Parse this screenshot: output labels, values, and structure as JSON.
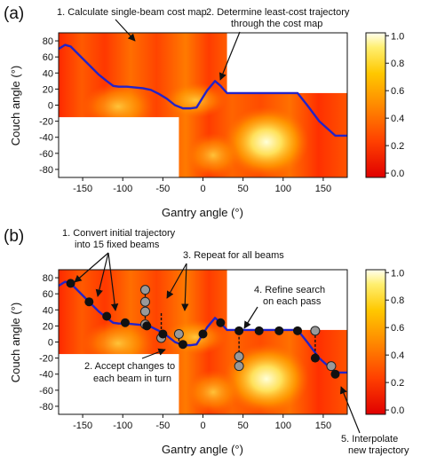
{
  "panel_a": {
    "label": "(a)",
    "annotation_1": "1. Calculate single-beam cost map",
    "annotation_2_line1": "2. Determine least-cost trajectory",
    "annotation_2_line2": "through the cost map",
    "xlabel": "Gantry angle (°)",
    "ylabel": "Couch angle (°)"
  },
  "panel_b": {
    "label": "(b)",
    "annotation_1_line1": "1. Convert initial trajectory",
    "annotation_1_line2": "into 15 fixed beams",
    "annotation_2_line1": "2. Accept changes to",
    "annotation_2_line2": "each beam in turn",
    "annotation_3": "3. Repeat for all beams",
    "annotation_4_line1": "4. Refine search",
    "annotation_4_line2": "on each pass",
    "annotation_5_line1": "5. Interpolate",
    "annotation_5_line2": "new trajectory",
    "xlabel": "Gantry angle (°)",
    "ylabel": "Couch angle (°)"
  },
  "colors": {
    "trajectory": "#2323c8",
    "accepted_beam": "#111111",
    "candidate_beam": "#999999",
    "colormap": [
      "#e00000",
      "#ff3a00",
      "#ff7a00",
      "#ffb000",
      "#ffe060",
      "#ffffe0"
    ]
  },
  "chart_data": {
    "type": "heatmap",
    "xlim": [
      -180,
      180
    ],
    "ylim": [
      -90,
      90
    ],
    "x_ticks": [
      "-150",
      "-100",
      "-50",
      "0",
      "50",
      "100",
      "150"
    ],
    "y_ticks": [
      "80",
      "60",
      "40",
      "20",
      "0",
      "-20",
      "-40",
      "-60",
      "-80"
    ],
    "x_tick_values": [
      -150,
      -100,
      -50,
      0,
      50,
      100,
      150
    ],
    "y_tick_values": [
      80,
      60,
      40,
      20,
      0,
      -20,
      -40,
      -60,
      -80
    ],
    "colorbar": {
      "range": [
        0,
        1.0
      ],
      "ticks": [
        "0.0",
        "0.2",
        "0.4",
        "0.6",
        "0.8",
        "1.0"
      ],
      "tick_values": [
        0,
        0.2,
        0.4,
        0.6,
        0.8,
        1.0
      ]
    },
    "excluded_regions": [
      {
        "x": [
          -180,
          -30
        ],
        "y": [
          -90,
          -15
        ]
      },
      {
        "x": [
          30,
          180
        ],
        "y": [
          15,
          90
        ]
      }
    ],
    "trajectory": [
      [
        -180,
        70
      ],
      [
        -172,
        75
      ],
      [
        -165,
        73
      ],
      [
        -158,
        66
      ],
      [
        -150,
        58
      ],
      [
        -140,
        48
      ],
      [
        -130,
        38
      ],
      [
        -120,
        30
      ],
      [
        -112,
        24
      ],
      [
        -105,
        23
      ],
      [
        -95,
        23
      ],
      [
        -85,
        22
      ],
      [
        -75,
        21
      ],
      [
        -65,
        19
      ],
      [
        -55,
        14
      ],
      [
        -45,
        8
      ],
      [
        -35,
        0
      ],
      [
        -25,
        -4
      ],
      [
        -15,
        -4
      ],
      [
        -8,
        -3
      ],
      [
        0,
        10
      ],
      [
        5,
        18
      ],
      [
        15,
        30
      ],
      [
        22,
        24
      ],
      [
        30,
        15
      ],
      [
        60,
        15
      ],
      [
        90,
        15
      ],
      [
        118,
        15
      ],
      [
        130,
        0
      ],
      [
        145,
        -20
      ],
      [
        165,
        -38
      ],
      [
        180,
        -38
      ]
    ],
    "accepted_beams": [
      [
        -165,
        73
      ],
      [
        -142,
        50
      ],
      [
        -120,
        32
      ],
      [
        -97,
        24
      ],
      [
        -70,
        20
      ],
      [
        -50,
        10
      ],
      [
        -25,
        -3
      ],
      [
        0,
        10
      ],
      [
        22,
        24
      ],
      [
        45,
        14
      ],
      [
        70,
        14
      ],
      [
        95,
        14
      ],
      [
        118,
        14
      ],
      [
        140,
        -20
      ],
      [
        165,
        -40
      ]
    ],
    "candidate_beams": [
      [
        -72,
        65
      ],
      [
        -72,
        50
      ],
      [
        -72,
        38
      ],
      [
        -72,
        22
      ],
      [
        -52,
        5
      ],
      [
        -30,
        10
      ],
      [
        45,
        -18
      ],
      [
        45,
        -30
      ],
      [
        140,
        14
      ],
      [
        160,
        -30
      ]
    ]
  }
}
